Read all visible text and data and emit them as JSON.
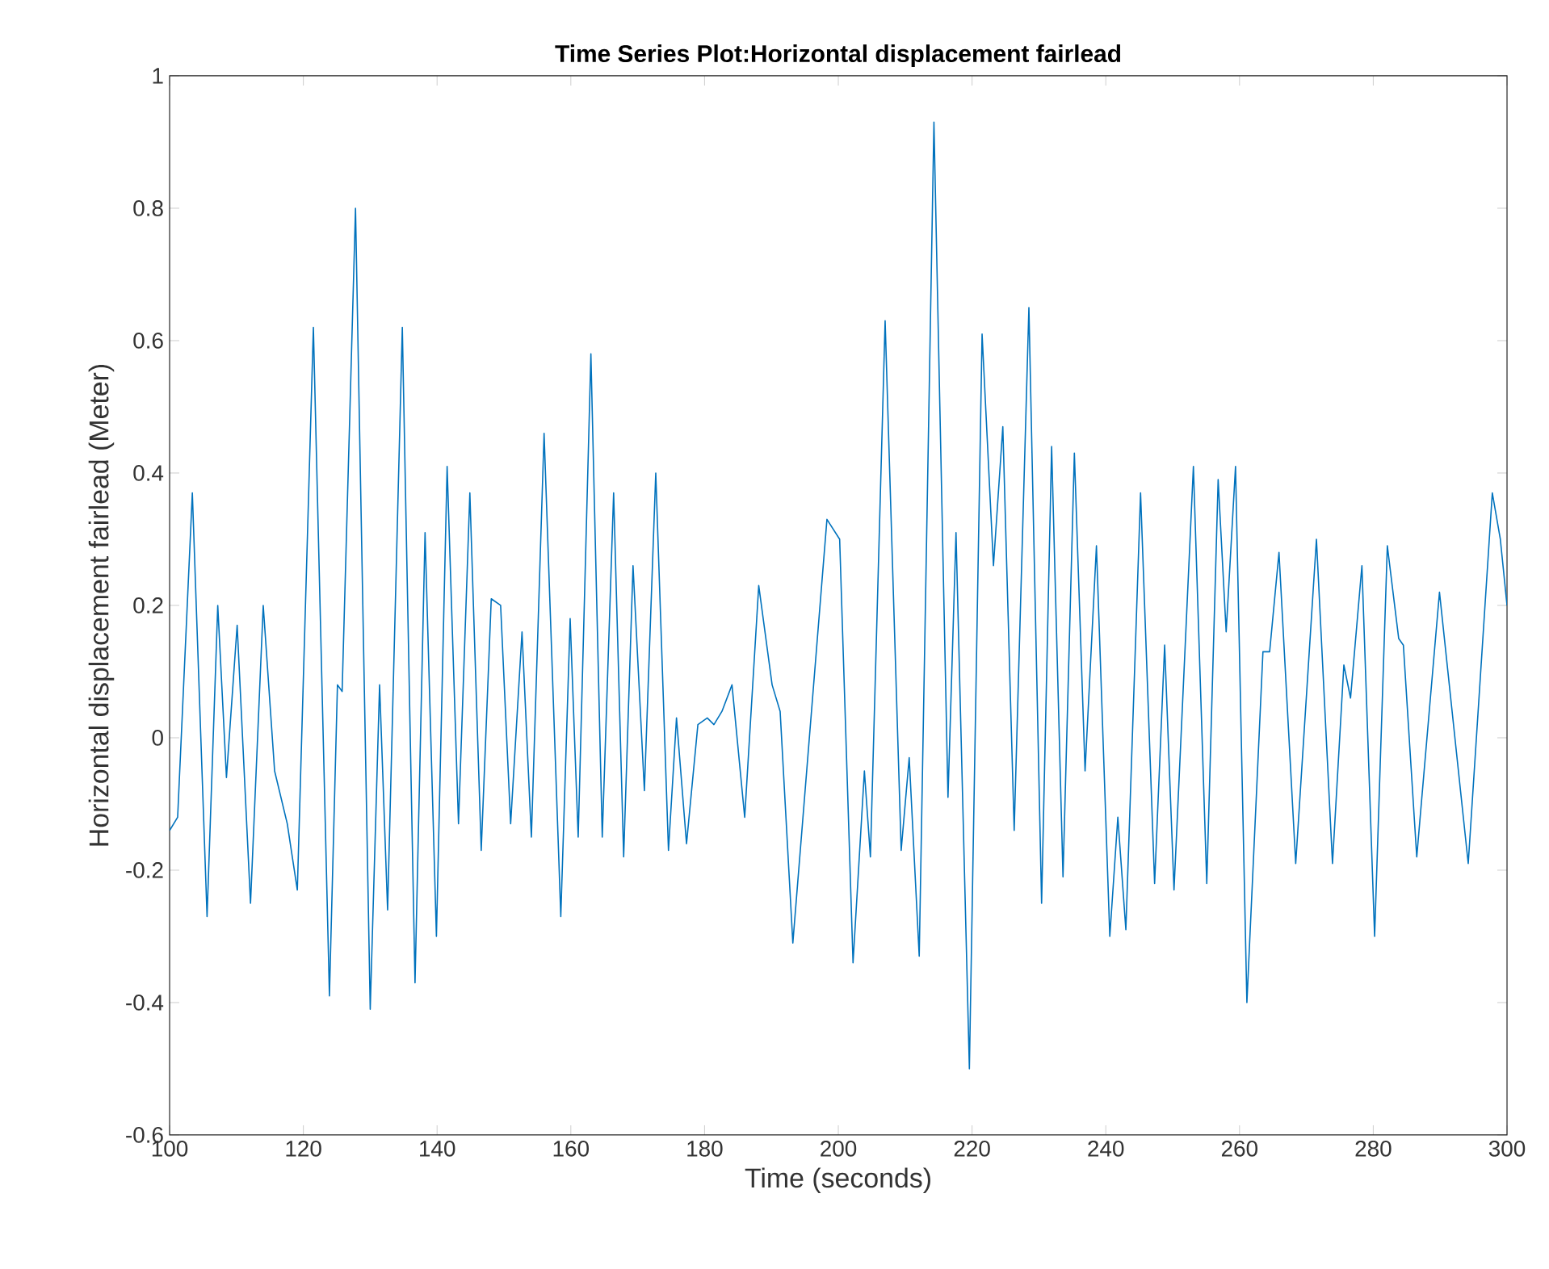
{
  "chart_data": {
    "type": "line",
    "title": "Time Series Plot:Horizontal displacement fairlead",
    "xlabel": "Time (seconds)",
    "ylabel": "Horizontal displacement fairlead (Meter)",
    "xlim": [
      100,
      300
    ],
    "ylim": [
      -0.6,
      1
    ],
    "xticks": [
      100,
      120,
      140,
      160,
      180,
      200,
      220,
      240,
      260,
      280,
      300
    ],
    "yticks": [
      -0.6,
      -0.4,
      -0.2,
      0,
      0.2,
      0.4,
      0.6,
      0.8,
      1
    ],
    "x": [
      100,
      101.2,
      103.4,
      105.6,
      107.2,
      108.5,
      110.1,
      112.1,
      114.0,
      115.7,
      117.6,
      119.1,
      121.5,
      123.9,
      125.1,
      125.8,
      127.8,
      130.0,
      131.4,
      132.6,
      134.8,
      136.7,
      138.2,
      139.9,
      141.5,
      143.2,
      144.9,
      146.6,
      148.1,
      149.5,
      151.0,
      152.7,
      154.1,
      156.0,
      158.5,
      159.9,
      161.1,
      163.0,
      164.7,
      166.4,
      167.9,
      169.3,
      171.0,
      172.7,
      174.6,
      175.8,
      177.3,
      179.0,
      180.4,
      181.4,
      182.6,
      184.1,
      186.0,
      188.1,
      190.1,
      191.3,
      193.2,
      198.3,
      200.2,
      202.2,
      203.9,
      204.8,
      207.0,
      209.4,
      210.6,
      212.1,
      214.3,
      216.4,
      217.6,
      219.6,
      221.5,
      223.2,
      224.6,
      226.3,
      228.5,
      230.4,
      231.9,
      233.6,
      235.3,
      236.9,
      238.6,
      240.6,
      241.8,
      243.0,
      245.2,
      247.3,
      248.8,
      250.2,
      253.1,
      255.1,
      256.8,
      258.0,
      259.4,
      261.1,
      263.5,
      264.5,
      265.9,
      268.4,
      271.5,
      273.9,
      275.6,
      276.6,
      278.3,
      280.2,
      282.1,
      283.8,
      284.5,
      286.5,
      289.9,
      294.2,
      297.8,
      299.0,
      300
    ],
    "series": [
      {
        "color": "#0072bd",
        "values": [
          -0.14,
          -0.12,
          0.37,
          -0.27,
          0.2,
          -0.06,
          0.17,
          -0.25,
          0.2,
          -0.05,
          -0.13,
          -0.23,
          0.62,
          -0.39,
          0.08,
          0.07,
          0.8,
          -0.41,
          0.08,
          -0.26,
          0.62,
          -0.37,
          0.31,
          -0.3,
          0.41,
          -0.13,
          0.37,
          -0.17,
          0.21,
          0.2,
          -0.13,
          0.16,
          -0.15,
          0.46,
          -0.27,
          0.18,
          -0.15,
          0.58,
          -0.15,
          0.37,
          -0.18,
          0.26,
          -0.08,
          0.4,
          -0.17,
          0.03,
          -0.16,
          0.02,
          0.03,
          0.02,
          0.04,
          0.08,
          -0.12,
          0.23,
          0.08,
          0.04,
          -0.31,
          0.33,
          0.3,
          -0.34,
          -0.05,
          -0.18,
          0.63,
          -0.17,
          -0.03,
          -0.33,
          0.93,
          -0.09,
          0.31,
          -0.5,
          0.61,
          0.26,
          0.47,
          -0.14,
          0.65,
          -0.25,
          0.44,
          -0.21,
          0.43,
          -0.05,
          0.29,
          -0.3,
          -0.12,
          -0.29,
          0.37,
          -0.22,
          0.14,
          -0.23,
          0.41,
          -0.22,
          0.39,
          0.16,
          0.41,
          -0.4,
          0.13,
          0.13,
          0.28,
          -0.19,
          0.3,
          -0.19,
          0.11,
          0.06,
          0.26,
          -0.3,
          0.29,
          0.15,
          0.14,
          -0.18,
          0.22,
          -0.19,
          0.37,
          0.3,
          0.2
        ]
      }
    ]
  }
}
